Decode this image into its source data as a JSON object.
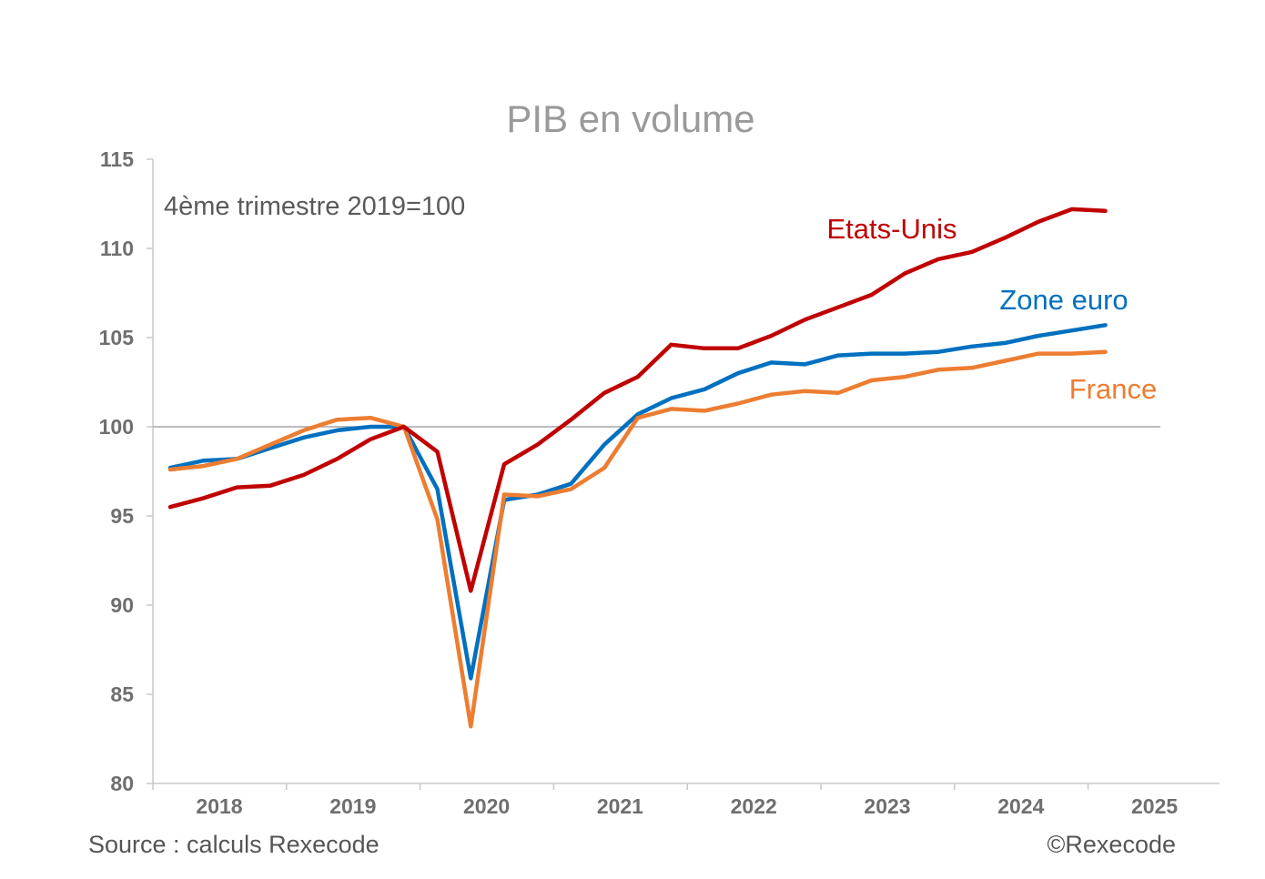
{
  "chart_data": {
    "type": "line",
    "title": "PIB en volume",
    "subtitle": "4ème trimestre 2019=100",
    "source": "Source : calculs Rexecode",
    "copyright": "©Rexecode",
    "ylim": [
      80,
      115
    ],
    "yticks": [
      "115",
      "110",
      "105",
      "100",
      "95",
      "90",
      "85",
      "80"
    ],
    "ytick_values": [
      115,
      110,
      105,
      100,
      95,
      90,
      85,
      80
    ],
    "xticks": [
      "2018",
      "2019",
      "2020",
      "2021",
      "2022",
      "2023",
      "2024",
      "2025"
    ],
    "reference_line": 100,
    "grid": false,
    "colors": {
      "etats_unis": "#c00000",
      "zone_euro": "#0070c0",
      "france": "#ed7d31",
      "axis": "#c8c8c8",
      "refline": "#a6a6a6"
    },
    "series": [
      {
        "name": "Etats-Unis",
        "color": "#c00000",
        "values": [
          95.5,
          96.0,
          96.6,
          96.7,
          97.3,
          98.2,
          99.3,
          100.0,
          98.6,
          90.8,
          97.9,
          99.0,
          100.4,
          101.9,
          102.8,
          104.6,
          104.4,
          104.4,
          105.1,
          106.0,
          106.7,
          107.4,
          108.6,
          109.4,
          109.8,
          110.6,
          111.5,
          112.2,
          112.1
        ]
      },
      {
        "name": "Zone euro",
        "color": "#0070c0",
        "values": [
          97.7,
          98.1,
          98.2,
          98.8,
          99.4,
          99.8,
          100.0,
          100.0,
          96.5,
          85.9,
          95.9,
          96.2,
          96.8,
          99.0,
          100.7,
          101.6,
          102.1,
          103.0,
          103.6,
          103.5,
          104.0,
          104.1,
          104.1,
          104.2,
          104.5,
          104.7,
          105.1,
          105.4,
          105.7
        ]
      },
      {
        "name": "France",
        "color": "#ed7d31",
        "values": [
          97.6,
          97.8,
          98.2,
          99.0,
          99.8,
          100.4,
          100.5,
          100.0,
          94.8,
          83.2,
          96.2,
          96.1,
          96.5,
          97.7,
          100.5,
          101.0,
          100.9,
          101.3,
          101.8,
          102.0,
          101.9,
          102.6,
          102.8,
          103.2,
          103.3,
          103.7,
          104.1,
          104.1,
          104.2
        ]
      }
    ]
  }
}
